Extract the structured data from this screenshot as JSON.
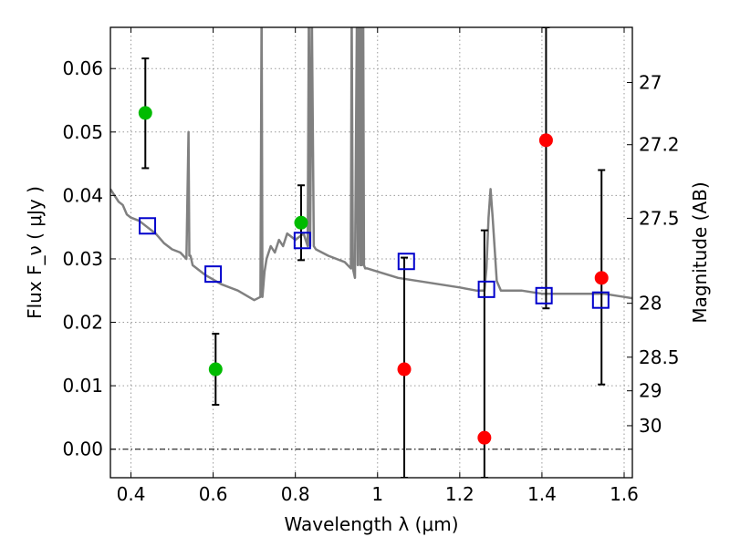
{
  "chart_data": {
    "type": "scatter",
    "title": "",
    "xlabel": "Wavelength  λ (μm)",
    "ylabel": "Flux  F_ν ( μJy )",
    "ylabel_right": "Magnitude (AB)",
    "xlim": [
      0.35,
      1.62
    ],
    "ylim": [
      -0.0045,
      0.0665
    ],
    "grid": true,
    "x_ticks": [
      0.4,
      0.6,
      0.8,
      1.0,
      1.2,
      1.4,
      1.6
    ],
    "x_tick_labels": [
      "0.4",
      "0.6",
      "0.8",
      "1",
      "1.2",
      "1.4",
      "1.6"
    ],
    "y_ticks": [
      0.0,
      0.01,
      0.02,
      0.03,
      0.04,
      0.05,
      0.06
    ],
    "y_tick_labels": [
      "0.00",
      "0.01",
      "0.02",
      "0.03",
      "0.04",
      "0.05",
      "0.06"
    ],
    "right_ticks": [
      {
        "label": "27",
        "flux": 0.0578
      },
      {
        "label": "27.2",
        "flux": 0.048
      },
      {
        "label": "27.5",
        "flux": 0.0364
      },
      {
        "label": "28",
        "flux": 0.023
      },
      {
        "label": "28.5",
        "flux": 0.0145
      },
      {
        "label": "29",
        "flux": 0.0092
      },
      {
        "label": "30",
        "flux": 0.0037
      }
    ],
    "colors": {
      "model": "#808080",
      "detection": "#00bb00",
      "nondetection": "#ff0000",
      "model_photometry": "#0000cc",
      "errorbar": "#000000"
    },
    "model_spectrum": {
      "x": [
        0.35,
        0.36,
        0.37,
        0.38,
        0.39,
        0.4,
        0.42,
        0.44,
        0.46,
        0.48,
        0.5,
        0.52,
        0.535,
        0.54,
        0.542,
        0.545,
        0.55,
        0.58,
        0.62,
        0.66,
        0.7,
        0.715,
        0.718,
        0.72,
        0.725,
        0.73,
        0.74,
        0.75,
        0.76,
        0.77,
        0.78,
        0.8,
        0.81,
        0.82,
        0.83,
        0.833,
        0.836,
        0.84,
        0.845,
        0.85,
        0.88,
        0.92,
        0.935,
        0.937,
        0.94,
        0.945,
        0.95,
        0.952,
        0.955,
        0.958,
        0.96,
        0.962,
        0.965,
        0.967,
        0.97,
        0.975,
        1.0,
        1.05,
        1.1,
        1.15,
        1.2,
        1.24,
        1.26,
        1.265,
        1.27,
        1.275,
        1.28,
        1.29,
        1.3,
        1.35,
        1.4,
        1.45,
        1.5,
        1.55,
        1.6,
        1.62
      ],
      "y": [
        0.041,
        0.04,
        0.039,
        0.0385,
        0.037,
        0.0365,
        0.036,
        0.035,
        0.034,
        0.0325,
        0.0315,
        0.031,
        0.03,
        0.05,
        0.0305,
        0.0305,
        0.029,
        0.0275,
        0.026,
        0.025,
        0.0235,
        0.024,
        0.07,
        0.024,
        0.028,
        0.03,
        0.032,
        0.031,
        0.033,
        0.032,
        0.034,
        0.033,
        0.0335,
        0.034,
        0.032,
        0.07,
        0.032,
        0.07,
        0.032,
        0.0315,
        0.0305,
        0.0295,
        0.0285,
        0.07,
        0.0285,
        0.027,
        0.07,
        0.029,
        0.07,
        0.029,
        0.07,
        0.029,
        0.07,
        0.029,
        0.0285,
        0.0285,
        0.028,
        0.027,
        0.0265,
        0.026,
        0.0255,
        0.025,
        0.025,
        0.0285,
        0.0365,
        0.041,
        0.0365,
        0.0265,
        0.025,
        0.025,
        0.0245,
        0.0245,
        0.0245,
        0.0245,
        0.024,
        0.0238
      ]
    },
    "series": [
      {
        "marker": "circle-green",
        "points": [
          {
            "x": 0.435,
            "y": 0.053,
            "lo": 0.0443,
            "hi": 0.0616
          },
          {
            "x": 0.606,
            "y": 0.0126,
            "lo": 0.007,
            "hi": 0.0182
          },
          {
            "x": 0.814,
            "y": 0.0357,
            "lo": 0.0298,
            "hi": 0.0416
          }
        ]
      },
      {
        "marker": "circle-red",
        "points": [
          {
            "x": 1.065,
            "y": 0.0126,
            "lo": -0.0045,
            "hi": 0.0302
          },
          {
            "x": 1.26,
            "y": 0.0018,
            "lo": -0.0045,
            "hi": 0.0345
          },
          {
            "x": 1.41,
            "y": 0.0487,
            "lo": 0.0222,
            "hi": 0.0665
          },
          {
            "x": 1.545,
            "y": 0.027,
            "lo": 0.0102,
            "hi": 0.044
          }
        ]
      },
      {
        "marker": "square-blue",
        "points": [
          {
            "x": 0.44,
            "y": 0.0352
          },
          {
            "x": 0.6,
            "y": 0.0276
          },
          {
            "x": 0.817,
            "y": 0.0329
          },
          {
            "x": 1.07,
            "y": 0.0296
          },
          {
            "x": 1.265,
            "y": 0.0252
          },
          {
            "x": 1.405,
            "y": 0.0242
          },
          {
            "x": 1.543,
            "y": 0.0235
          }
        ]
      }
    ]
  }
}
